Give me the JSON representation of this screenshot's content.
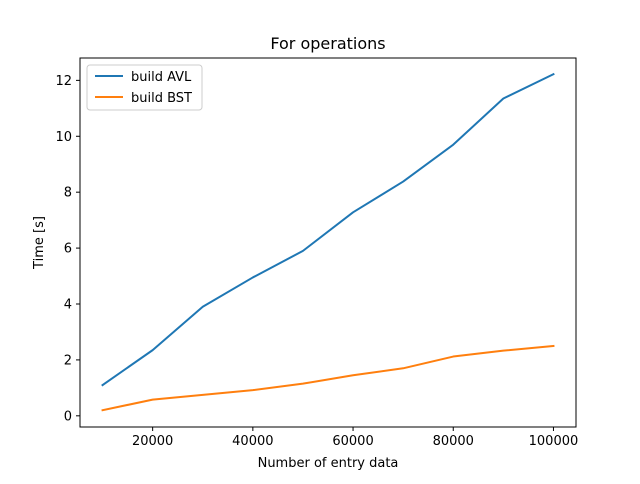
{
  "chart_data": {
    "type": "line",
    "title": "For operations",
    "xlabel": "Number of entry data",
    "ylabel": "Time [s]",
    "xlim": [
      5500,
      104500
    ],
    "ylim": [
      -0.4,
      12.8
    ],
    "x_ticks": [
      20000,
      40000,
      60000,
      80000,
      100000
    ],
    "x_tick_labels": [
      "20000",
      "40000",
      "60000",
      "80000",
      "100000"
    ],
    "y_ticks": [
      0,
      2,
      4,
      6,
      8,
      10,
      12
    ],
    "y_tick_labels": [
      "0",
      "2",
      "4",
      "6",
      "8",
      "10",
      "12"
    ],
    "grid": false,
    "legend_position": "upper-left",
    "x": [
      10000,
      20000,
      30000,
      40000,
      50000,
      60000,
      70000,
      80000,
      90000,
      100000
    ],
    "series": [
      {
        "name": "build AVL",
        "color": "#1f77b4",
        "values": [
          1.1,
          2.35,
          3.9,
          4.95,
          5.9,
          7.28,
          8.38,
          9.7,
          11.35,
          12.22
        ]
      },
      {
        "name": "build BST",
        "color": "#ff7f0e",
        "values": [
          0.2,
          0.58,
          0.75,
          0.92,
          1.15,
          1.45,
          1.7,
          2.12,
          2.33,
          2.5
        ]
      }
    ]
  }
}
